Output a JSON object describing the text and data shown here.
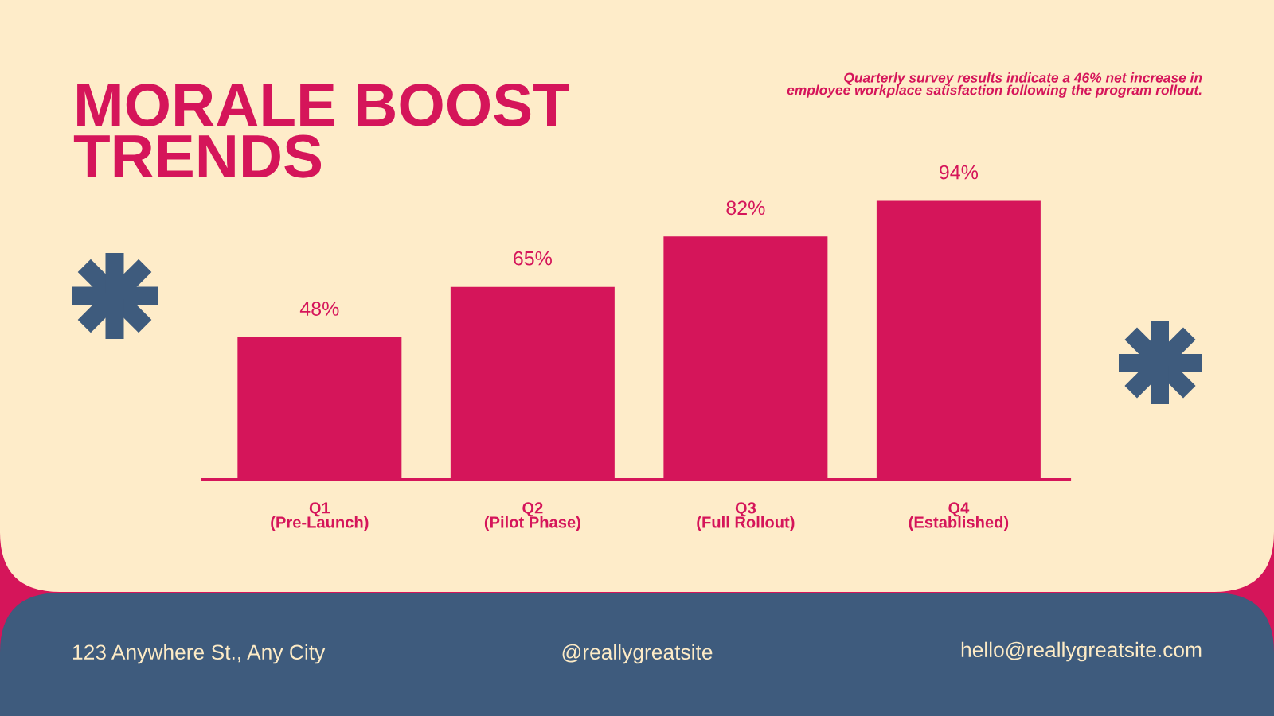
{
  "chart_data": {
    "type": "bar",
    "title": "MORALE BOOST\nTRENDS",
    "subtitle": "Quarterly survey results indicate a 46% net increase in\nemployee workplace satisfaction following the program rollout.",
    "categories": [
      "Q1\n(Pre-Launch)",
      "Q2\n(Pilot Phase)",
      "Q3\n(Full Rollout)",
      "Q4\n(Established)"
    ],
    "values": [
      48,
      65,
      82,
      94
    ],
    "value_labels": [
      "48%",
      "65%",
      "82%",
      "94%"
    ],
    "color": "#d5155a",
    "grid": false,
    "annotations": [
      "123 Anywhere St., Any City",
      "@reallygreatsite",
      "hello@reallygreatsite.com"
    ]
  }
}
